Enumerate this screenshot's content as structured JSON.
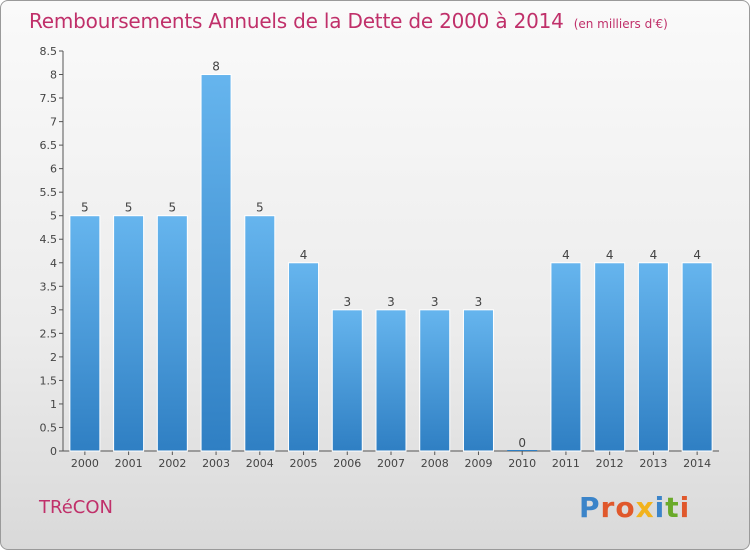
{
  "header": {
    "title": "Remboursements Annuels de la Dette de 2000 à 2014",
    "subtitle": "(en milliers d'€)"
  },
  "footer": {
    "town": "TRéCON",
    "logo": "Proxiti"
  },
  "colors": {
    "title": "#c0306a",
    "bar_light": "#66b5ee",
    "bar_dark": "#2f7fc3",
    "logo": [
      "#3b84c9",
      "#e0582c",
      "#e0582c",
      "#f2b31d",
      "#3b84c9",
      "#6aaa2a",
      "#e0582c"
    ]
  },
  "chart_data": {
    "type": "bar",
    "title": "Remboursements Annuels de la Dette de 2000 à 2014",
    "subtitle": "(en milliers d'€)",
    "xlabel": "",
    "ylabel": "",
    "categories": [
      "2000",
      "2001",
      "2002",
      "2003",
      "2004",
      "2005",
      "2006",
      "2007",
      "2008",
      "2009",
      "2010",
      "2011",
      "2012",
      "2013",
      "2014"
    ],
    "values": [
      5,
      5,
      5,
      8,
      5,
      4,
      3,
      3,
      3,
      3,
      0,
      4,
      4,
      4,
      4
    ],
    "data_labels": [
      "5",
      "5",
      "5",
      "8",
      "5",
      "4",
      "3",
      "3",
      "3",
      "3",
      "0",
      "4",
      "4",
      "4",
      "4"
    ],
    "ylim": [
      0,
      8.5
    ],
    "yticks": [
      "0",
      "0.5",
      "1",
      "1.5",
      "2",
      "2.5",
      "3",
      "3.5",
      "4",
      "4.5",
      "5",
      "5.5",
      "6",
      "6.5",
      "7",
      "7.5",
      "8",
      "8.5"
    ],
    "grid": false,
    "legend": "none"
  }
}
